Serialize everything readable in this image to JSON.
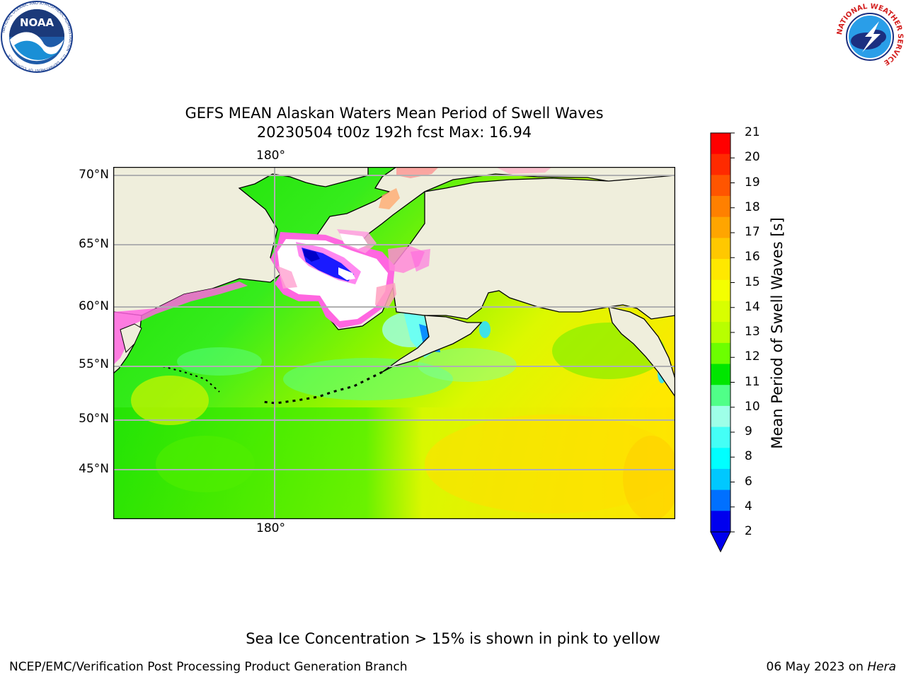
{
  "header": {
    "left_logo": {
      "name": "noaa-logo",
      "text": "NOAA"
    },
    "right_logo": {
      "name": "national-weather-service-logo",
      "text": "NATIONAL WEATHER SERVICE"
    }
  },
  "title": {
    "line1": "GEFS MEAN Alaskan Waters Mean Period of Swell Waves",
    "line2": "20230504 t00z 192h fcst   Max: 16.94"
  },
  "map": {
    "lon_labels": [
      "180°",
      "180°"
    ],
    "lat_labels": [
      "70°N",
      "65°N",
      "60°N",
      "55°N",
      "50°N",
      "45°N"
    ],
    "colors": {
      "land": "#efeedc",
      "ocean_low": "#00e400",
      "ocean_high": "#ffee00",
      "ice": "#ff66e0"
    }
  },
  "colorbar": {
    "title": "Mean Period of Swell Waves [s]",
    "tick_labels": [
      "21",
      "20",
      "19",
      "18",
      "17",
      "16",
      "15",
      "14",
      "13",
      "12",
      "11",
      "10",
      "9",
      "8",
      "6",
      "4",
      "2"
    ],
    "colors": [
      "#ff0000",
      "#ff2a00",
      "#ff5500",
      "#ff8000",
      "#ffa500",
      "#ffc800",
      "#ffe800",
      "#f4ff00",
      "#d8ff00",
      "#b8ff00",
      "#6cff00",
      "#00e600",
      "#50ff88",
      "#9effe8",
      "#44fff6",
      "#00ffff",
      "#00c8ff",
      "#0070ff",
      "#0000ee"
    ]
  },
  "footer": {
    "note": "Sea Ice Concentration > 15% is shown in pink to yellow",
    "credit": "NCEP/EMC/Verification Post Processing Product Generation Branch",
    "date": "06 May 2023 on",
    "machine": "Hera"
  }
}
